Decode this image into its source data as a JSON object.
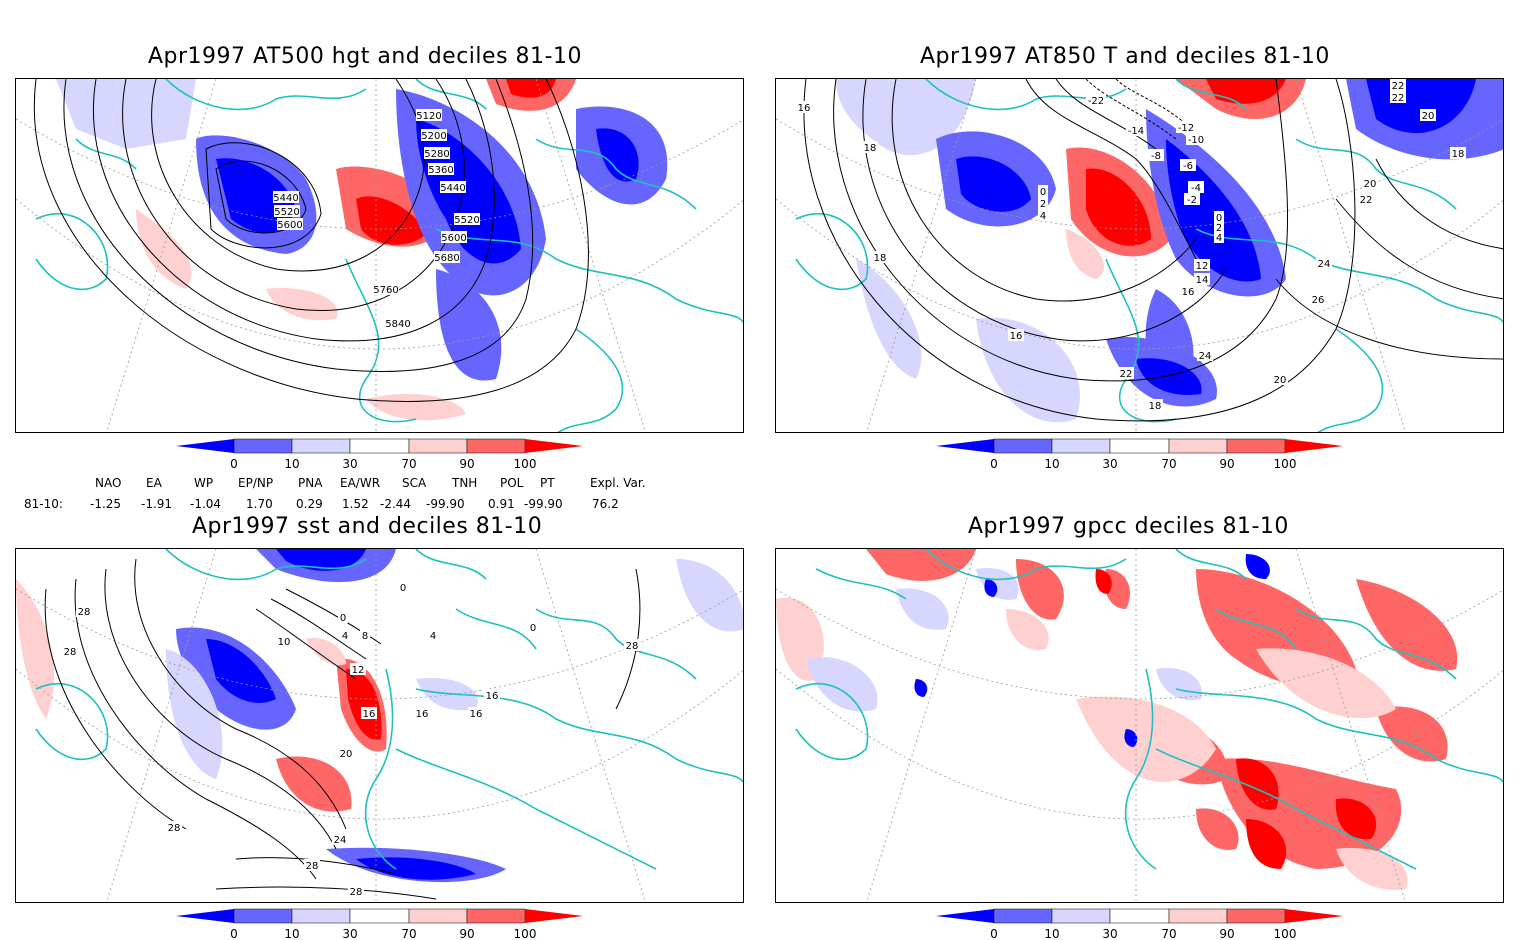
{
  "panels": [
    {
      "id": "p1",
      "title": "Apr1997 AT500 hgt and deciles 81-10",
      "contour_labels": [
        "5120",
        "5200",
        "5280",
        "5360",
        "5440",
        "5520",
        "5440",
        "5520",
        "5600",
        "5600",
        "5680",
        "5760",
        "5840"
      ]
    },
    {
      "id": "p2",
      "title": "Apr1997 AT850 T and deciles 81-10",
      "contour_labels": [
        "-22",
        "-14",
        "-12",
        "-10",
        "-8",
        "-6",
        "-4",
        "-2",
        "0",
        "2",
        "4",
        "0",
        "2",
        "4",
        "12",
        "14",
        "16",
        "18",
        "18",
        "16",
        "16",
        "18",
        "20",
        "22",
        "22",
        "24",
        "26",
        "20",
        "24",
        "22",
        "18",
        "20",
        "22"
      ]
    },
    {
      "id": "p3",
      "title": "Apr1997 sst and deciles 81-10",
      "contour_labels": [
        "28",
        "28",
        "0",
        "4",
        "8",
        "10",
        "12",
        "16",
        "16",
        "16",
        "20",
        "24",
        "28",
        "28",
        "28",
        "4",
        "0",
        "0",
        "28",
        "16"
      ]
    },
    {
      "id": "p4",
      "title": "Apr1997 gpcc deciles 81-10",
      "contour_labels": []
    }
  ],
  "colorbar": {
    "labels": [
      "0",
      "10",
      "30",
      "70",
      "90",
      "100"
    ],
    "colors": [
      "#0000ff",
      "#6666ff",
      "#d6d6ff",
      "#ffffff",
      "#ffd0d0",
      "#ff6666",
      "#ff0000"
    ]
  },
  "indices": {
    "headers": [
      "NAO",
      "EA",
      "WP",
      "EP/NP",
      "PNA",
      "EA/WR",
      "SCA",
      "TNH",
      "POL",
      "PT",
      "Expl. Var."
    ],
    "row_label": "81-10:",
    "values": [
      "-1.25",
      "-1.91",
      "-1.04",
      "1.70",
      "0.29",
      "1.52",
      "-2.44",
      "-99.90",
      "0.91",
      "-99.90",
      "76.2"
    ]
  },
  "colors": {
    "coast": "#20c0c0",
    "contour": "#000000",
    "grid": "#999999"
  }
}
